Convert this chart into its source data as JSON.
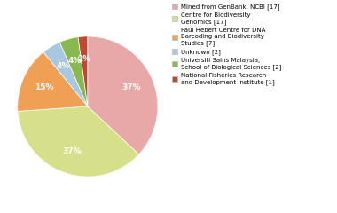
{
  "legend_labels": [
    "Mined from GenBank, NCBI [17]",
    "Centre for Biodiversity\nGenomics [17]",
    "Paul Hebert Centre for DNA\nBarcoding and Biodiversity\nStudies [7]",
    "Unknown [2]",
    "Universiti Sains Malaysia,\nSchool of Biological Sciences [2]",
    "National Fisheries Research\nand Development Institute [1]"
  ],
  "values": [
    17,
    17,
    7,
    2,
    2,
    1
  ],
  "colors": [
    "#e8a8a8",
    "#d6e08a",
    "#f0a055",
    "#a8c8e0",
    "#8ab850",
    "#c04830"
  ],
  "startangle": 90,
  "counterclock": false,
  "pct_distance": 0.68
}
